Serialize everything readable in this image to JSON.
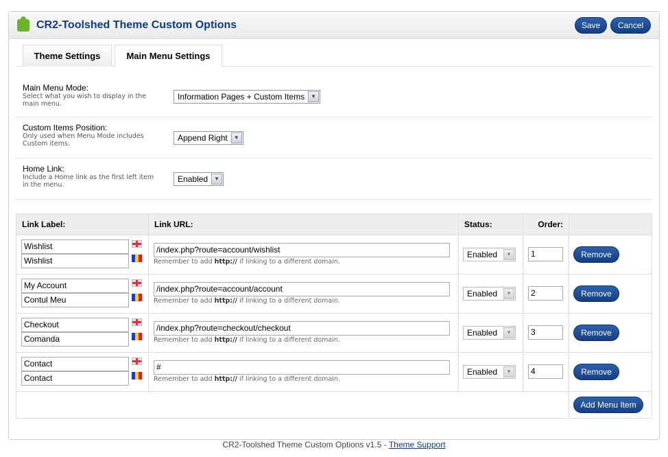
{
  "header": {
    "title": "CR2-Toolshed Theme Custom Options",
    "save_label": "Save",
    "cancel_label": "Cancel"
  },
  "tabs": [
    {
      "label": "Theme Settings",
      "active": false
    },
    {
      "label": "Main Menu Settings",
      "active": true
    }
  ],
  "settings": [
    {
      "label": "Main Menu Mode:",
      "help": "Select what you wish to display in the main menu.",
      "value": "Information Pages + Custom Items"
    },
    {
      "label": "Custom Items Position:",
      "help": "Only used when Menu Mode includes Custom items.",
      "value": "Append Right"
    },
    {
      "label": "Home Link:",
      "help": "Include a Home link as the first left item in the menu.",
      "value": "Enabled"
    }
  ],
  "table": {
    "headers": [
      "Link Label:",
      "Link URL:",
      "Status:",
      "Order:",
      ""
    ],
    "hint_prefix": "Remember to add ",
    "hint_bold": "http://",
    "hint_suffix": " if linking to a different domain.",
    "remove_label": "Remove",
    "add_label": "Add Menu Item",
    "rows": [
      {
        "label_en": "Wishlist",
        "label_ro": "Wishlist",
        "url": "/index.php?route=account/wishlist",
        "status": "Enabled",
        "order": "1"
      },
      {
        "label_en": "My Account",
        "label_ro": "Contul Meu",
        "url": "/index.php?route=account/account",
        "status": "Enabled",
        "order": "2"
      },
      {
        "label_en": "Checkout",
        "label_ro": "Comanda",
        "url": "/index.php?route=checkout/checkout",
        "status": "Enabled",
        "order": "3"
      },
      {
        "label_en": "Contact",
        "label_ro": "Contact",
        "url": "#",
        "status": "Enabled",
        "order": "4"
      }
    ]
  },
  "footer": {
    "text": "CR2-Toolshed Theme Custom Options v1.5 - ",
    "link": "Theme Support"
  }
}
